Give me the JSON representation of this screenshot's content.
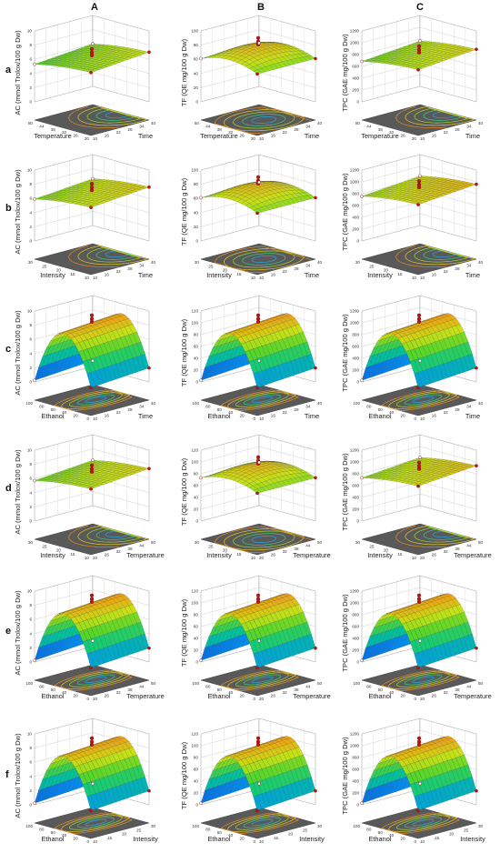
{
  "columns": [
    "A",
    "B",
    "C"
  ],
  "rows": [
    "a",
    "b",
    "c",
    "d",
    "e",
    "f"
  ],
  "chart_data": [
    {
      "row": "a",
      "col": "A",
      "type": "surface3d",
      "zlabel": "AC (mmol Trolox/100 g Dw)",
      "zticks": [
        "0",
        "2",
        "4",
        "6",
        "8",
        "10"
      ],
      "xlabel": "Temperature",
      "xticks": [
        "20",
        "26",
        "32",
        "38",
        "44",
        "50"
      ],
      "ylabel": "Time",
      "yticks": [
        "10",
        "16",
        "22",
        "28",
        "34",
        "40"
      ],
      "shape": "flat"
    },
    {
      "row": "a",
      "col": "B",
      "type": "surface3d",
      "zlabel": "TF (QE mg/100 g Dw)",
      "zticks": [
        "0",
        "20",
        "40",
        "60",
        "80",
        "100"
      ],
      "xlabel": "Temperature",
      "xticks": [
        "20",
        "26",
        "32",
        "38",
        "44",
        "50"
      ],
      "ylabel": "Time",
      "yticks": [
        "10",
        "16",
        "22",
        "28",
        "34",
        "40"
      ],
      "shape": "dome"
    },
    {
      "row": "a",
      "col": "C",
      "type": "surface3d",
      "zlabel": "TPC (GAE mg/100 g Dw)",
      "zticks": [
        "0",
        "200",
        "400",
        "600",
        "800",
        "1000",
        "1200"
      ],
      "xlabel": "Temperature",
      "xticks": [
        "20",
        "26",
        "32",
        "38",
        "44",
        "50"
      ],
      "ylabel": "Time",
      "yticks": [
        "10",
        "16",
        "22",
        "28",
        "34",
        "40"
      ],
      "shape": "flat"
    },
    {
      "row": "b",
      "col": "A",
      "type": "surface3d",
      "zlabel": "AC (mmol Trolox/100 g Dw)",
      "zticks": [
        "0",
        "2",
        "4",
        "6",
        "8",
        "10"
      ],
      "xlabel": "Intensity",
      "xticks": [
        "10",
        "15",
        "20",
        "25",
        "30"
      ],
      "ylabel": "Time",
      "yticks": [
        "10",
        "16",
        "22",
        "28",
        "34",
        "40"
      ],
      "shape": "flat"
    },
    {
      "row": "b",
      "col": "B",
      "type": "surface3d",
      "zlabel": "TF (QE mg/100 g Dw)",
      "zticks": [
        "0",
        "20",
        "40",
        "60",
        "80",
        "100"
      ],
      "xlabel": "Intensity",
      "xticks": [
        "10",
        "15",
        "20",
        "25",
        "30"
      ],
      "ylabel": "Time",
      "yticks": [
        "10",
        "16",
        "22",
        "28",
        "34",
        "40"
      ],
      "shape": "dome"
    },
    {
      "row": "b",
      "col": "C",
      "type": "surface3d",
      "zlabel": "TPC (GAE mg/100 g Dw)",
      "zticks": [
        "0",
        "200",
        "400",
        "600",
        "800",
        "1000",
        "1200"
      ],
      "xlabel": "Intensity",
      "xticks": [
        "10",
        "15",
        "20",
        "25",
        "30"
      ],
      "ylabel": "Time",
      "yticks": [
        "10",
        "16",
        "22",
        "28",
        "34",
        "40"
      ],
      "shape": "flat"
    },
    {
      "row": "c",
      "col": "A",
      "type": "surface3d",
      "zlabel": "AC (mmol Trolox/100 g Dw)",
      "zticks": [
        "0",
        "2",
        "4",
        "6",
        "8",
        "10"
      ],
      "xlabel": "Ethanol",
      "xticks": [
        "0",
        "20",
        "40",
        "60",
        "80",
        "100"
      ],
      "ylabel": "Time",
      "yticks": [
        "10",
        "16",
        "22",
        "28",
        "34",
        "40"
      ],
      "shape": "arch"
    },
    {
      "row": "c",
      "col": "B",
      "type": "surface3d",
      "zlabel": "TF (QE mg/100 g Dw)",
      "zticks": [
        "0",
        "20",
        "40",
        "60",
        "80",
        "100",
        "120"
      ],
      "xlabel": "Ethanol",
      "xticks": [
        "0",
        "20",
        "40",
        "60",
        "80",
        "100"
      ],
      "ylabel": "Time",
      "yticks": [
        "10",
        "16",
        "22",
        "28",
        "34",
        "40"
      ],
      "shape": "arch"
    },
    {
      "row": "c",
      "col": "C",
      "type": "surface3d",
      "zlabel": "TPC (GAE mg/100 g Dw)",
      "zticks": [
        "0",
        "200",
        "400",
        "600",
        "800",
        "1000",
        "1200"
      ],
      "xlabel": "Ethanol",
      "xticks": [
        "0",
        "20",
        "40",
        "60",
        "80",
        "100"
      ],
      "ylabel": "Time",
      "yticks": [
        "10",
        "16",
        "22",
        "28",
        "34",
        "40"
      ],
      "shape": "arch"
    },
    {
      "row": "d",
      "col": "A",
      "type": "surface3d",
      "zlabel": "AC (mmol Trolox/100 g Dw)",
      "zticks": [
        "0",
        "2",
        "4",
        "6",
        "8",
        "10"
      ],
      "xlabel": "Intensity",
      "xticks": [
        "10",
        "15",
        "20",
        "25",
        "30"
      ],
      "ylabel": "Temperature",
      "yticks": [
        "20",
        "26",
        "32",
        "38",
        "44",
        "50"
      ],
      "shape": "flat"
    },
    {
      "row": "d",
      "col": "B",
      "type": "surface3d",
      "zlabel": "TF (QE mg/100 g Dw)",
      "zticks": [
        "0",
        "20",
        "40",
        "60",
        "80",
        "100",
        "120"
      ],
      "xlabel": "Intensity",
      "xticks": [
        "10",
        "15",
        "20",
        "25",
        "30"
      ],
      "ylabel": "Temperature",
      "yticks": [
        "20",
        "26",
        "32",
        "38",
        "44",
        "50"
      ],
      "shape": "dome"
    },
    {
      "row": "d",
      "col": "C",
      "type": "surface3d",
      "zlabel": "TPC (GAE mg/100 g Dw)",
      "zticks": [
        "0",
        "200",
        "400",
        "600",
        "800",
        "1000",
        "1200"
      ],
      "xlabel": "Intensity",
      "xticks": [
        "10",
        "15",
        "20",
        "25",
        "30"
      ],
      "ylabel": "Temperature",
      "yticks": [
        "20",
        "26",
        "32",
        "38",
        "44",
        "50"
      ],
      "shape": "flat"
    },
    {
      "row": "e",
      "col": "A",
      "type": "surface3d",
      "zlabel": "AC (mmol Trolox/100 g Dw)",
      "zticks": [
        "0",
        "2",
        "4",
        "6",
        "8",
        "10"
      ],
      "xlabel": "Ethanol",
      "xticks": [
        "0",
        "20",
        "40",
        "60",
        "80",
        "100"
      ],
      "ylabel": "Temperature",
      "yticks": [
        "20",
        "26",
        "32",
        "38",
        "44",
        "50"
      ],
      "shape": "arch"
    },
    {
      "row": "e",
      "col": "B",
      "type": "surface3d",
      "zlabel": "TF (QE mg/100 g Dw)",
      "zticks": [
        "0",
        "20",
        "40",
        "60",
        "80",
        "100",
        "120"
      ],
      "xlabel": "Ethanol",
      "xticks": [
        "0",
        "20",
        "40",
        "60",
        "80",
        "100"
      ],
      "ylabel": "Temperature",
      "yticks": [
        "20",
        "26",
        "32",
        "38",
        "44",
        "50"
      ],
      "shape": "arch"
    },
    {
      "row": "e",
      "col": "C",
      "type": "surface3d",
      "zlabel": "TPC (GAE mg/100 g Dw)",
      "zticks": [
        "0",
        "200",
        "400",
        "600",
        "800",
        "1000",
        "1200"
      ],
      "xlabel": "Ethanol",
      "xticks": [
        "0",
        "20",
        "40",
        "60",
        "80",
        "100"
      ],
      "ylabel": "Temperature",
      "yticks": [
        "20",
        "26",
        "32",
        "38",
        "44",
        "50"
      ],
      "shape": "arch"
    },
    {
      "row": "f",
      "col": "A",
      "type": "surface3d",
      "zlabel": "AC (mmol Trolox/100 g Dw)",
      "zticks": [
        "0",
        "2",
        "4",
        "6",
        "8",
        "10"
      ],
      "xlabel": "Ethanol",
      "xticks": [
        "0",
        "20",
        "40",
        "60",
        "80",
        "100"
      ],
      "ylabel": "Intensity",
      "yticks": [
        "10",
        "15",
        "20",
        "25",
        "30"
      ],
      "shape": "arch"
    },
    {
      "row": "f",
      "col": "B",
      "type": "surface3d",
      "zlabel": "TF (QE mg/100 g Dw)",
      "zticks": [
        "0",
        "20",
        "40",
        "60",
        "80",
        "100",
        "120"
      ],
      "xlabel": "Ethanol",
      "xticks": [
        "0",
        "20",
        "40",
        "60",
        "80",
        "100"
      ],
      "ylabel": "Intensity",
      "yticks": [
        "10",
        "15",
        "20",
        "25",
        "30"
      ],
      "shape": "arch"
    },
    {
      "row": "f",
      "col": "C",
      "type": "surface3d",
      "zlabel": "TPC (GAE mg/100 g Dw)",
      "zticks": [
        "0",
        "200",
        "400",
        "600",
        "800",
        "1000",
        "1200"
      ],
      "xlabel": "Ethanol",
      "xticks": [
        "0",
        "20",
        "40",
        "60",
        "80",
        "100"
      ],
      "ylabel": "Intensity",
      "yticks": [
        "10",
        "15",
        "20",
        "25",
        "30"
      ],
      "shape": "arch"
    }
  ]
}
